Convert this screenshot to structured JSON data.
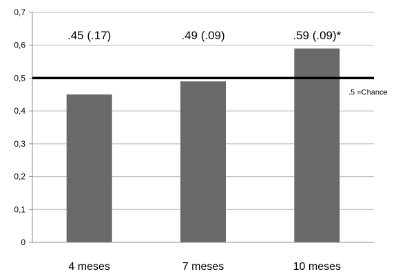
{
  "chart_data": {
    "type": "bar",
    "categories": [
      "4 meses",
      "7 meses",
      "10 meses"
    ],
    "values": [
      0.45,
      0.49,
      0.59
    ],
    "data_labels": [
      ".45 (.17)",
      ".49 (.09)",
      ".59 (.09)*"
    ],
    "ylim": [
      0,
      0.7
    ],
    "yticks": [
      0,
      0.1,
      0.2,
      0.3,
      0.4,
      0.5,
      0.6,
      0.7
    ],
    "ytick_labels": [
      "0",
      "0,1",
      "0,2",
      "0,3",
      "0,4",
      "0,5",
      "0,6",
      "0,7"
    ],
    "reference_line": {
      "value": 0.5,
      "label": ".5 =Chance"
    },
    "grid": true,
    "legend": "none",
    "colors": {
      "bar": "#696969",
      "reference_line": "#000000",
      "grid": "#b3b3b3"
    }
  }
}
